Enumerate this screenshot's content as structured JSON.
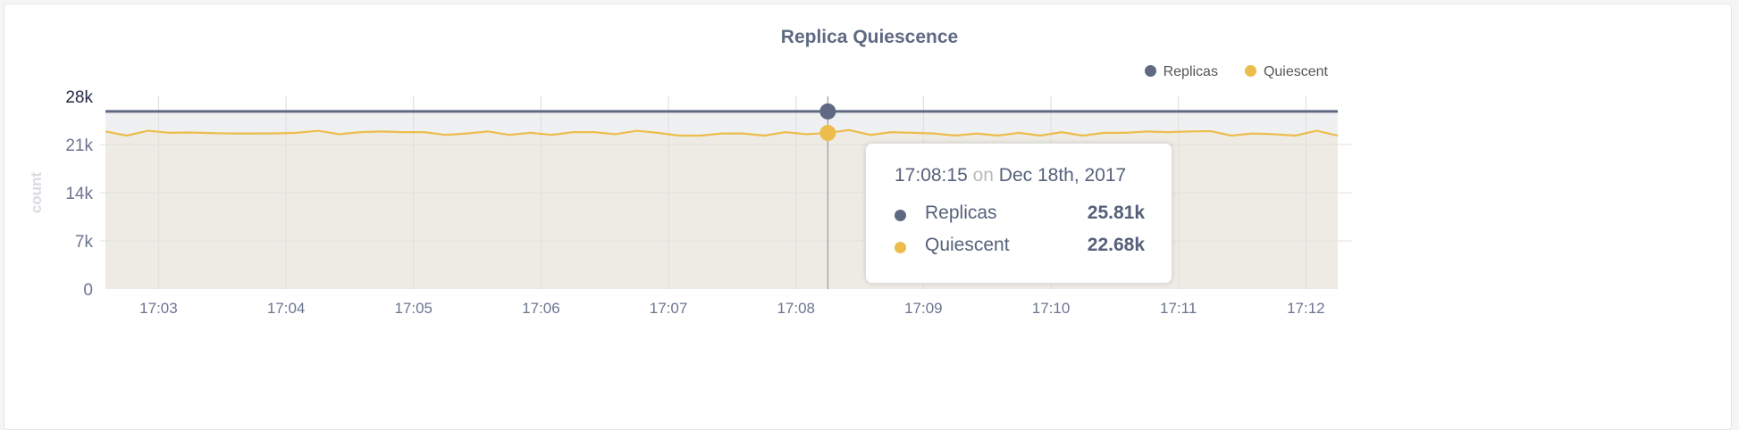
{
  "chart_data": {
    "type": "area",
    "title": "Replica Quiescence",
    "ylabel": "count",
    "ylim": [
      0,
      28000
    ],
    "y_ticks": [
      "0",
      "7k",
      "14k",
      "21k",
      "28k"
    ],
    "x_ticks": [
      "17:03",
      "17:04",
      "17:05",
      "17:06",
      "17:07",
      "17:08",
      "17:09",
      "17:10",
      "17:11",
      "17:12"
    ],
    "grid": true,
    "legend_position": "top-right",
    "x": [
      "17:02:35",
      "17:02:45",
      "17:02:55",
      "17:03:05",
      "17:03:15",
      "17:03:25",
      "17:03:35",
      "17:03:45",
      "17:03:55",
      "17:04:05",
      "17:04:15",
      "17:04:25",
      "17:04:35",
      "17:04:45",
      "17:04:55",
      "17:05:05",
      "17:05:15",
      "17:05:25",
      "17:05:35",
      "17:05:45",
      "17:05:55",
      "17:06:05",
      "17:06:15",
      "17:06:25",
      "17:06:35",
      "17:06:45",
      "17:06:55",
      "17:07:05",
      "17:07:15",
      "17:07:25",
      "17:07:35",
      "17:07:45",
      "17:07:55",
      "17:08:05",
      "17:08:15",
      "17:08:25",
      "17:08:35",
      "17:08:45",
      "17:08:55",
      "17:09:05",
      "17:09:15",
      "17:09:25",
      "17:09:35",
      "17:09:45",
      "17:09:55",
      "17:10:05",
      "17:10:15",
      "17:10:25",
      "17:10:35",
      "17:10:45",
      "17:10:55",
      "17:11:05",
      "17:11:15",
      "17:11:25",
      "17:11:35",
      "17:11:45",
      "17:11:55",
      "17:12:05",
      "17:12:15"
    ],
    "series": [
      {
        "name": "Replicas",
        "color": "#5f6a82",
        "values": [
          25810,
          25810,
          25810,
          25810,
          25810,
          25810,
          25810,
          25810,
          25810,
          25810,
          25810,
          25810,
          25810,
          25810,
          25810,
          25810,
          25810,
          25810,
          25810,
          25810,
          25810,
          25810,
          25810,
          25810,
          25810,
          25810,
          25810,
          25810,
          25810,
          25810,
          25810,
          25810,
          25810,
          25810,
          25810,
          25810,
          25810,
          25810,
          25810,
          25810,
          25810,
          25810,
          25810,
          25810,
          25810,
          25810,
          25810,
          25810,
          25810,
          25810,
          25810,
          25810,
          25810,
          25810,
          25810,
          25810,
          25810,
          25810,
          25810
        ]
      },
      {
        "name": "Quiescent",
        "color": "#ecbd4c",
        "values": [
          22900,
          22300,
          23000,
          22700,
          22750,
          22650,
          22600,
          22600,
          22620,
          22700,
          23000,
          22500,
          22800,
          22900,
          22800,
          22800,
          22400,
          22600,
          22900,
          22400,
          22700,
          22400,
          22800,
          22800,
          22500,
          23000,
          22700,
          22300,
          22300,
          22600,
          22600,
          22300,
          22800,
          22500,
          22680,
          23100,
          22400,
          22800,
          22700,
          22600,
          22300,
          22600,
          22300,
          22700,
          22300,
          22800,
          22300,
          22700,
          22700,
          22900,
          22800,
          22900,
          22950,
          22300,
          22600,
          22500,
          22300,
          23000,
          22300
        ]
      }
    ]
  },
  "tooltip": {
    "time": "17:08:15",
    "on": "on",
    "date": "Dec 18th, 2017",
    "hover_index": 34,
    "rows": [
      {
        "name": "Replicas",
        "value": "25.81k",
        "color": "#5f6a82"
      },
      {
        "name": "Quiescent",
        "value": "22.68k",
        "color": "#ecbd4c"
      }
    ]
  }
}
